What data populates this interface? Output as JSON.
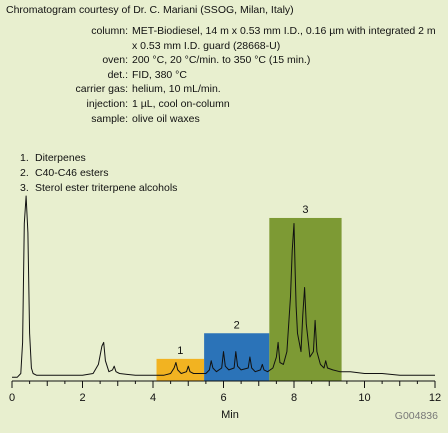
{
  "header": {
    "courtesy": "Chromatogram courtesy of Dr. C. Mariani (SSOG, Milan, Italy)"
  },
  "conditions": [
    {
      "label": "column:",
      "value": "MET-Biodiesel, 14 m x 0.53 mm I.D., 0.16 µm with integrated 2 m x 0.53 mm I.D. guard (28668-U)"
    },
    {
      "label": "oven:",
      "value": "200 °C, 20 °C/min. to 350 °C (15 min.)"
    },
    {
      "label": "det.:",
      "value": "FID, 380 °C"
    },
    {
      "label": "carrier gas:",
      "value": "helium, 10 mL/min."
    },
    {
      "label": "injection:",
      "value": "1 µL, cool on-column"
    },
    {
      "label": "sample:",
      "value": "olive oil waxes"
    }
  ],
  "peaks": [
    {
      "num": "1.",
      "name": "Diterpenes"
    },
    {
      "num": "2.",
      "name": "C40-C46 esters"
    },
    {
      "num": "3.",
      "name": "Sterol ester triterpene alcohols"
    }
  ],
  "chart_data": {
    "type": "line",
    "xlabel": "Min",
    "xlim": [
      0,
      12
    ],
    "xticks": [
      0,
      2,
      4,
      6,
      8,
      10,
      12
    ],
    "code": "G004836",
    "regions": [
      {
        "label": "1",
        "x_start": 4.1,
        "x_end": 5.45,
        "relative_height": 0.11,
        "color": "#f2b321"
      },
      {
        "label": "2",
        "x_start": 5.45,
        "x_end": 7.3,
        "relative_height": 0.25,
        "color": "#2b73b8"
      },
      {
        "label": "3",
        "x_start": 7.3,
        "x_end": 9.35,
        "relative_height": 0.88,
        "color": "#7d9a34"
      }
    ],
    "series": [
      {
        "x": [
          0,
          0.15,
          0.25,
          0.3,
          0.35,
          0.4,
          0.45,
          0.5,
          0.55,
          0.6,
          0.7,
          1.0,
          1.5,
          2.0,
          2.3,
          2.45,
          2.55,
          2.6,
          2.65,
          2.75,
          2.85,
          2.9,
          2.95,
          3.05,
          3.5,
          4.0,
          4.3,
          4.5,
          4.6,
          4.65,
          4.7,
          4.8,
          4.95,
          5.0,
          5.05,
          5.15,
          5.3,
          5.5,
          5.6,
          5.65,
          5.7,
          5.8,
          5.95,
          6.0,
          6.05,
          6.15,
          6.3,
          6.35,
          6.4,
          6.5,
          6.7,
          6.75,
          6.8,
          6.9,
          7.05,
          7.1,
          7.15,
          7.25,
          7.4,
          7.5,
          7.55,
          7.6,
          7.7,
          7.8,
          7.85,
          7.9,
          7.95,
          8.0,
          8.03,
          8.06,
          8.1,
          8.2,
          8.25,
          8.3,
          8.35,
          8.45,
          8.55,
          8.6,
          8.65,
          8.75,
          8.85,
          8.9,
          8.95,
          9.1,
          9.3,
          9.6,
          10.0,
          10.5,
          11.0,
          12.0
        ],
        "y": [
          0.01,
          0.01,
          0.03,
          0.2,
          0.85,
          1.0,
          0.8,
          0.25,
          0.06,
          0.03,
          0.02,
          0.02,
          0.02,
          0.02,
          0.03,
          0.08,
          0.18,
          0.2,
          0.1,
          0.04,
          0.05,
          0.07,
          0.04,
          0.03,
          0.02,
          0.02,
          0.02,
          0.03,
          0.06,
          0.09,
          0.05,
          0.03,
          0.04,
          0.07,
          0.04,
          0.03,
          0.03,
          0.03,
          0.05,
          0.1,
          0.06,
          0.04,
          0.06,
          0.15,
          0.07,
          0.05,
          0.06,
          0.15,
          0.07,
          0.05,
          0.06,
          0.12,
          0.06,
          0.04,
          0.05,
          0.08,
          0.05,
          0.04,
          0.06,
          0.12,
          0.2,
          0.09,
          0.08,
          0.15,
          0.3,
          0.45,
          0.7,
          0.85,
          0.6,
          0.4,
          0.25,
          0.15,
          0.35,
          0.5,
          0.3,
          0.12,
          0.15,
          0.32,
          0.15,
          0.08,
          0.06,
          0.1,
          0.06,
          0.05,
          0.04,
          0.04,
          0.03,
          0.03,
          0.02,
          0.02
        ]
      }
    ]
  }
}
